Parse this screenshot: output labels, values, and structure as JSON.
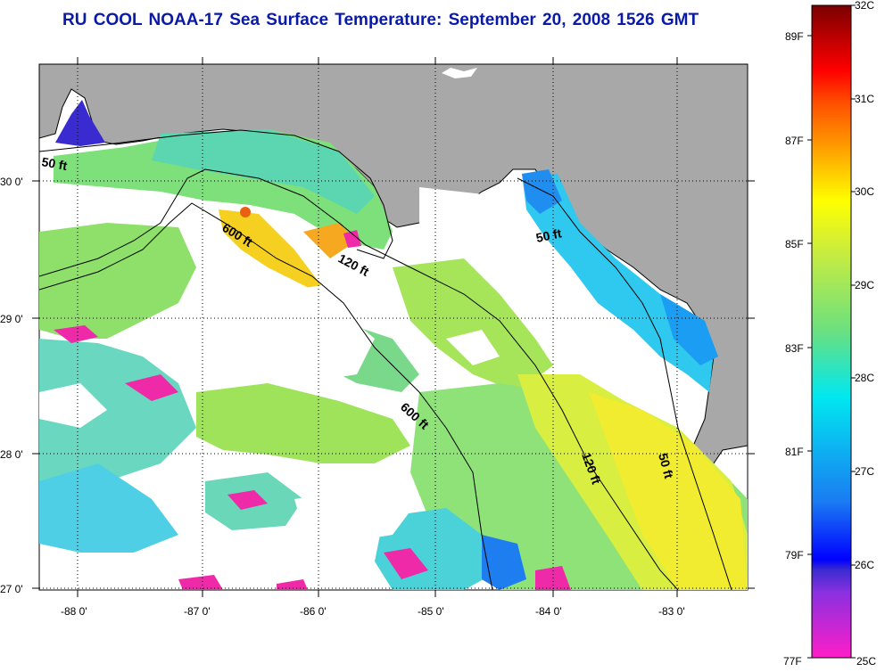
{
  "title": "RU COOL  NOAA-17  Sea Surface Temperature:  September 20, 2008 1526 GMT",
  "colors": {
    "land": "#a8a8a8",
    "ocean_nodata": "#ffffff",
    "coastline": "#000000",
    "title": "#0a1aa8"
  },
  "map": {
    "lon_ticks": [
      "-88 0'",
      "-87 0'",
      "-86 0'",
      "-85 0'",
      "-84 0'",
      "-83 0'"
    ],
    "lat_ticks": [
      "30 0'",
      "29 0'",
      "28 0'",
      "27 0'"
    ],
    "lon_range": [
      -88.3,
      -82.3
    ],
    "lat_range": [
      26.95,
      30.85
    ],
    "contours": [
      {
        "label": "50 ft",
        "depth_ft": 50
      },
      {
        "label": "600 ft",
        "depth_ft": 600
      },
      {
        "label": "120 ft",
        "depth_ft": 120
      },
      {
        "label": "50 ft",
        "depth_ft": 50
      },
      {
        "label": "600 ft",
        "depth_ft": 600
      },
      {
        "label": "120 ft",
        "depth_ft": 120
      },
      {
        "label": "50 ft",
        "depth_ft": 50
      }
    ]
  },
  "colorbar": {
    "celsius_labels": [
      "32C",
      "31C",
      "30C",
      "29C",
      "28C",
      "27C",
      "26C",
      "25C"
    ],
    "fahrenheit_labels": [
      "89F",
      "87F",
      "85F",
      "83F",
      "81F",
      "79F",
      "77F"
    ],
    "celsius_range": [
      25,
      32
    ]
  }
}
